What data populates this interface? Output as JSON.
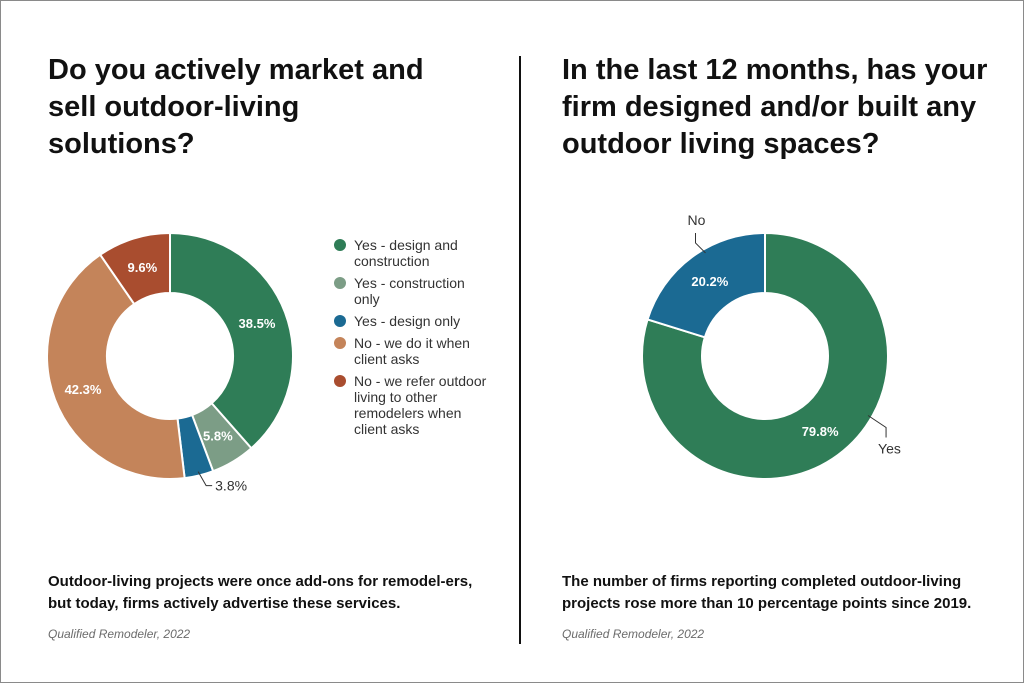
{
  "left": {
    "title": "Do you actively market and sell outdoor-living solutions?",
    "caption": "Outdoor-living projects were once add-ons for remodel-ers, but today, firms actively advertise these services.",
    "source": "Qualified Remodeler, 2022"
  },
  "right": {
    "title": "In the last 12 months, has your firm designed and/or built any outdoor living spaces?",
    "caption": "The number of firms reporting completed outdoor-living projects rose more than 10 percentage points since 2019.",
    "source": "Qualified Remodeler, 2022"
  },
  "chart_data": [
    {
      "type": "pie",
      "title": "Do you actively market and sell outdoor-living solutions?",
      "categories": [
        "Yes - design and construction",
        "Yes - construction only",
        "Yes - design only",
        "No - we do it when client asks",
        "No - we refer outdoor living to other remodelers when client asks"
      ],
      "values": [
        38.5,
        5.8,
        3.8,
        42.3,
        9.6
      ],
      "labels": [
        "38.5%",
        "5.8%",
        "3.8%",
        "42.3%",
        "9.6%"
      ],
      "colors": [
        "#2f7d57",
        "#7c9d86",
        "#1b6a93",
        "#c4845a",
        "#a94d2f"
      ],
      "legend": "right"
    },
    {
      "type": "pie",
      "title": "In the last 12 months, has your firm designed and/or built any outdoor living spaces?",
      "categories": [
        "Yes",
        "No"
      ],
      "values": [
        79.8,
        20.2
      ],
      "labels": [
        "79.8%",
        "20.2%"
      ],
      "colors": [
        "#2f7d57",
        "#1b6a93"
      ],
      "legend": "none"
    }
  ]
}
